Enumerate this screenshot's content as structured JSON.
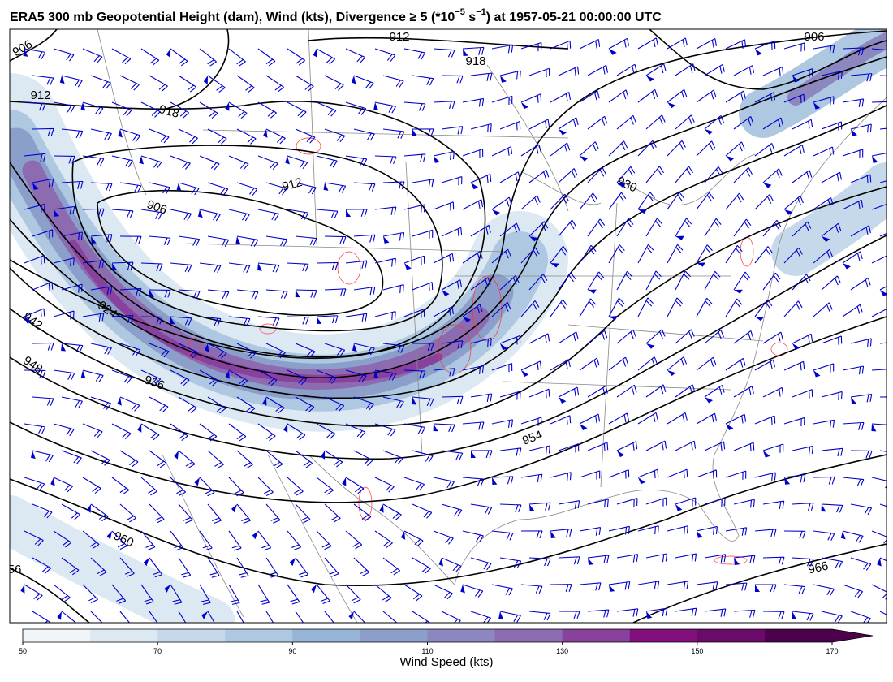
{
  "title_parts": [
    "ERA5 300 mb Geopotential Height (dam), Wind (kts), Divergence ≥ 5 (*10",
    "−5",
    " s",
    "−1",
    ") at 1957-05-21 00:00:00 UTC"
  ],
  "contour_labels": [
    906,
    912,
    918,
    912,
    906,
    924,
    942,
    948,
    936,
    930,
    954,
    960,
    966,
    906,
    912,
    918,
    56
  ],
  "colorbar": {
    "label": "Wind Speed (kts)",
    "range": [
      50,
      170
    ],
    "ticks": [
      50,
      70,
      90,
      110,
      130,
      150,
      170
    ],
    "colors": [
      "#f0f5f9",
      "#dce8f2",
      "#c6d9eb",
      "#aec8e1",
      "#95b4d6",
      "#8c9fcb",
      "#8c88bf",
      "#8c6bb1",
      "#88419d",
      "#810f7c",
      "#6a0a6b",
      "#4d004b"
    ]
  }
}
